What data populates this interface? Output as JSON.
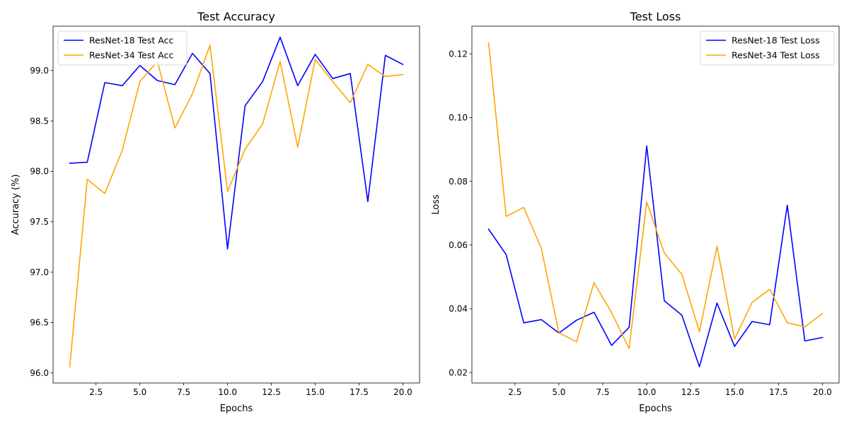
{
  "chart_data": [
    {
      "type": "line",
      "title": "Test Accuracy",
      "xlabel": "Epochs",
      "ylabel": "Accuracy (%)",
      "xlim": [
        0.05,
        20.95
      ],
      "ylim": [
        95.9,
        99.44
      ],
      "x_ticks": [
        2.5,
        5.0,
        7.5,
        10.0,
        12.5,
        15.0,
        17.5,
        20.0
      ],
      "x_tick_labels": [
        "2.5",
        "5.0",
        "7.5",
        "10.0",
        "12.5",
        "15.0",
        "17.5",
        "20.0"
      ],
      "y_ticks": [
        96.0,
        96.5,
        97.0,
        97.5,
        98.0,
        98.5,
        99.0
      ],
      "y_tick_labels": [
        "96.0",
        "96.5",
        "97.0",
        "97.5",
        "98.0",
        "98.5",
        "99.0"
      ],
      "legend_position": "top-left",
      "x": [
        1,
        2,
        3,
        4,
        5,
        6,
        7,
        8,
        9,
        10,
        11,
        12,
        13,
        14,
        15,
        16,
        17,
        18,
        19,
        20
      ],
      "series": [
        {
          "name": "ResNet-18 Test Acc",
          "color": "#0000ff",
          "values": [
            98.08,
            98.09,
            98.88,
            98.85,
            99.05,
            98.9,
            98.86,
            99.17,
            98.97,
            97.23,
            98.65,
            98.89,
            99.33,
            98.85,
            99.16,
            98.92,
            98.97,
            97.7,
            99.15,
            99.06
          ]
        },
        {
          "name": "ResNet-34 Test Acc",
          "color": "#ffa500",
          "values": [
            96.06,
            97.92,
            97.78,
            98.21,
            98.89,
            99.09,
            98.43,
            98.77,
            99.25,
            97.8,
            98.22,
            98.47,
            99.09,
            98.24,
            99.11,
            98.89,
            98.68,
            99.06,
            98.94,
            98.96
          ]
        }
      ]
    },
    {
      "type": "line",
      "title": "Test Loss",
      "xlabel": "Epochs",
      "ylabel": "Loss",
      "xlim": [
        0.05,
        20.95
      ],
      "ylim": [
        0.0167,
        0.1287
      ],
      "x_ticks": [
        2.5,
        5.0,
        7.5,
        10.0,
        12.5,
        15.0,
        17.5,
        20.0
      ],
      "x_tick_labels": [
        "2.5",
        "5.0",
        "7.5",
        "10.0",
        "12.5",
        "15.0",
        "17.5",
        "20.0"
      ],
      "y_ticks": [
        0.02,
        0.04,
        0.06,
        0.08,
        0.1,
        0.12
      ],
      "y_tick_labels": [
        "0.02",
        "0.04",
        "0.06",
        "0.08",
        "0.10",
        "0.12"
      ],
      "legend_position": "top-right",
      "x": [
        1,
        2,
        3,
        4,
        5,
        6,
        7,
        8,
        9,
        10,
        11,
        12,
        13,
        14,
        15,
        16,
        17,
        18,
        19,
        20
      ],
      "series": [
        {
          "name": "ResNet-18 Test Loss",
          "color": "#0000ff",
          "values": [
            0.065,
            0.057,
            0.0356,
            0.0366,
            0.0324,
            0.0364,
            0.0389,
            0.0285,
            0.0342,
            0.0911,
            0.0425,
            0.038,
            0.0218,
            0.0418,
            0.0282,
            0.036,
            0.035,
            0.0725,
            0.0299,
            0.031
          ]
        },
        {
          "name": "ResNet-34 Test Loss",
          "color": "#ffa500",
          "values": [
            0.1235,
            0.069,
            0.0718,
            0.059,
            0.0325,
            0.0296,
            0.0482,
            0.0388,
            0.0275,
            0.0735,
            0.0575,
            0.0508,
            0.0328,
            0.0596,
            0.0305,
            0.042,
            0.0461,
            0.0356,
            0.0343,
            0.0385
          ]
        }
      ]
    }
  ]
}
